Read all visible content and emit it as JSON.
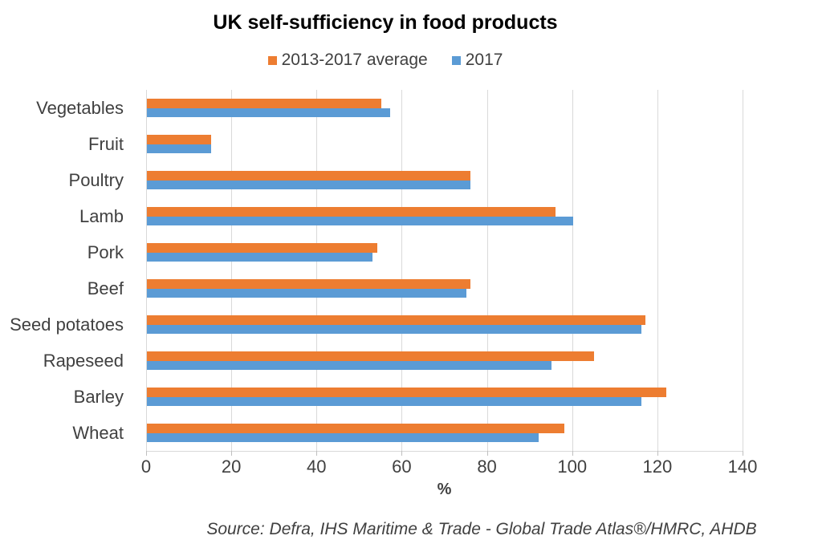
{
  "title": "UK self-sufficiency in food products",
  "x_axis_label": "%",
  "source": "Source: Defra, IHS Maritime & Trade - Global Trade Atlas®/HMRC, AHDB",
  "colors": {
    "series_orange": "#ED7D31",
    "series_blue": "#5B9BD5",
    "gridline": "#D9D9D9",
    "axis_text": "#404040",
    "title_text": "#000000"
  },
  "chart_data": {
    "type": "bar",
    "orientation": "horizontal",
    "title": "UK self-sufficiency in food products",
    "categories": [
      "Vegetables",
      "Fruit",
      "Poultry",
      "Lamb",
      "Pork",
      "Beef",
      "Seed potatoes",
      "Rapeseed",
      "Barley",
      "Wheat"
    ],
    "series": [
      {
        "name": "2013-2017 average",
        "color": "#ED7D31",
        "values": [
          55,
          15,
          76,
          96,
          54,
          76,
          117,
          105,
          122,
          98
        ]
      },
      {
        "name": "2017",
        "color": "#5B9BD5",
        "values": [
          57,
          15,
          76,
          100,
          53,
          75,
          116,
          95,
          116,
          92
        ]
      }
    ],
    "xlabel": "%",
    "ylabel": "",
    "xlim": [
      0,
      140
    ],
    "xticks": [
      0,
      20,
      40,
      60,
      80,
      100,
      120,
      140
    ],
    "grid": true,
    "legend_position": "top"
  }
}
